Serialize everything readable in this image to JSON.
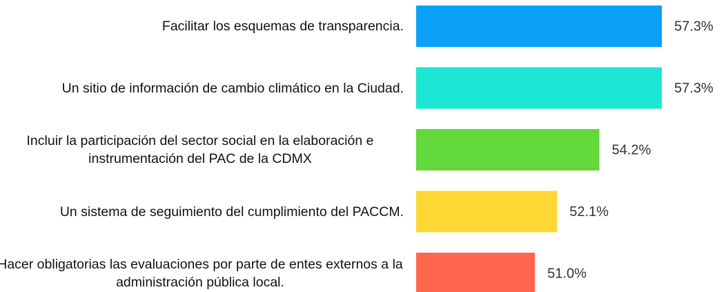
{
  "chart_data": {
    "type": "bar",
    "orientation": "horizontal",
    "categories": [
      "Facilitar los esquemas de transparencia.",
      "Un sitio de información de cambio climático en la Ciudad.",
      "Incluir la participación del sector social en la elaboración e instrumentación del PAC de la CDMX",
      "Un sistema de seguimiento del cumplimiento del PACCM.",
      "Hacer obligatorias las evaluaciones por parte de entes externos a la administración pública local."
    ],
    "values": [
      57.3,
      57.3,
      54.2,
      52.1,
      51.0
    ],
    "value_labels": [
      "57.3%",
      "57.3%",
      "54.2%",
      "52.1%",
      "51.0%"
    ],
    "colors": [
      "#0aa0f8",
      "#1de6d4",
      "#62d83a",
      "#fdd835",
      "#ff6650"
    ],
    "xlim": [
      45.1,
      57.3
    ]
  }
}
